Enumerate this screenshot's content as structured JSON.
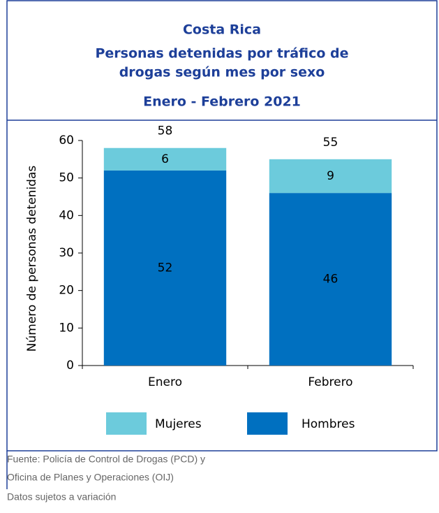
{
  "chart_data": {
    "type": "stacked_bar",
    "title": "Costa Rica",
    "subtitle": [
      "Personas detenidas  por tráfico de",
      "drogas según mes por sexo",
      "Enero - Febrero 2021"
    ],
    "y_label": "Número de personas detenidas",
    "categories": [
      "Enero",
      "Febrero"
    ],
    "series": [
      {
        "name": "Hombres",
        "color": "#0070c0",
        "values": [
          52,
          46
        ]
      },
      {
        "name": "Mujeres",
        "color": "#6ccbdc",
        "values": [
          6,
          9
        ]
      }
    ],
    "totals": [
      58,
      55
    ],
    "legend_order": [
      1,
      0
    ],
    "ylim": [
      0,
      60
    ],
    "yticks": [
      0,
      10,
      20,
      30,
      40,
      50,
      60
    ],
    "source": [
      "Fuente: Policía de Control de Drogas (PCD) y",
      "Oficina de Planes y Operaciones (OIJ)"
    ],
    "note": "Datos sujetos a variación"
  }
}
